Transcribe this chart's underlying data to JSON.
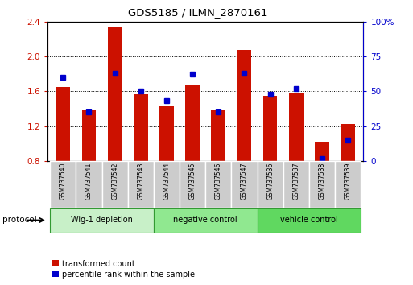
{
  "title": "GDS5185 / ILMN_2870161",
  "samples": [
    "GSM737540",
    "GSM737541",
    "GSM737542",
    "GSM737543",
    "GSM737544",
    "GSM737545",
    "GSM737546",
    "GSM737547",
    "GSM737536",
    "GSM737537",
    "GSM737538",
    "GSM737539"
  ],
  "red_values": [
    1.65,
    1.38,
    2.34,
    1.57,
    1.43,
    1.67,
    1.38,
    2.07,
    1.55,
    1.58,
    1.02,
    1.22
  ],
  "blue_values": [
    60,
    35,
    63,
    50,
    43,
    62,
    35,
    63,
    48,
    52,
    2,
    15
  ],
  "ylim_left": [
    0.8,
    2.4
  ],
  "ylim_right": [
    0,
    100
  ],
  "yticks_left": [
    0.8,
    1.2,
    1.6,
    2.0,
    2.4
  ],
  "yticks_right": [
    0,
    25,
    50,
    75,
    100
  ],
  "ytick_labels_right": [
    "0",
    "25",
    "50",
    "75",
    "100%"
  ],
  "groups": [
    {
      "label": "Wig-1 depletion",
      "start": 0,
      "end": 4
    },
    {
      "label": "negative control",
      "start": 4,
      "end": 8
    },
    {
      "label": "vehicle control",
      "start": 8,
      "end": 12
    }
  ],
  "group_colors": [
    "#c8f0c8",
    "#90e890",
    "#60d860"
  ],
  "bar_color": "#cc1100",
  "blue_color": "#0000cc",
  "bar_width": 0.55,
  "baseline": 0.8,
  "sample_box_color": "#cccccc",
  "legend_red_label": "transformed count",
  "legend_blue_label": "percentile rank within the sample",
  "protocol_label": "protocol"
}
